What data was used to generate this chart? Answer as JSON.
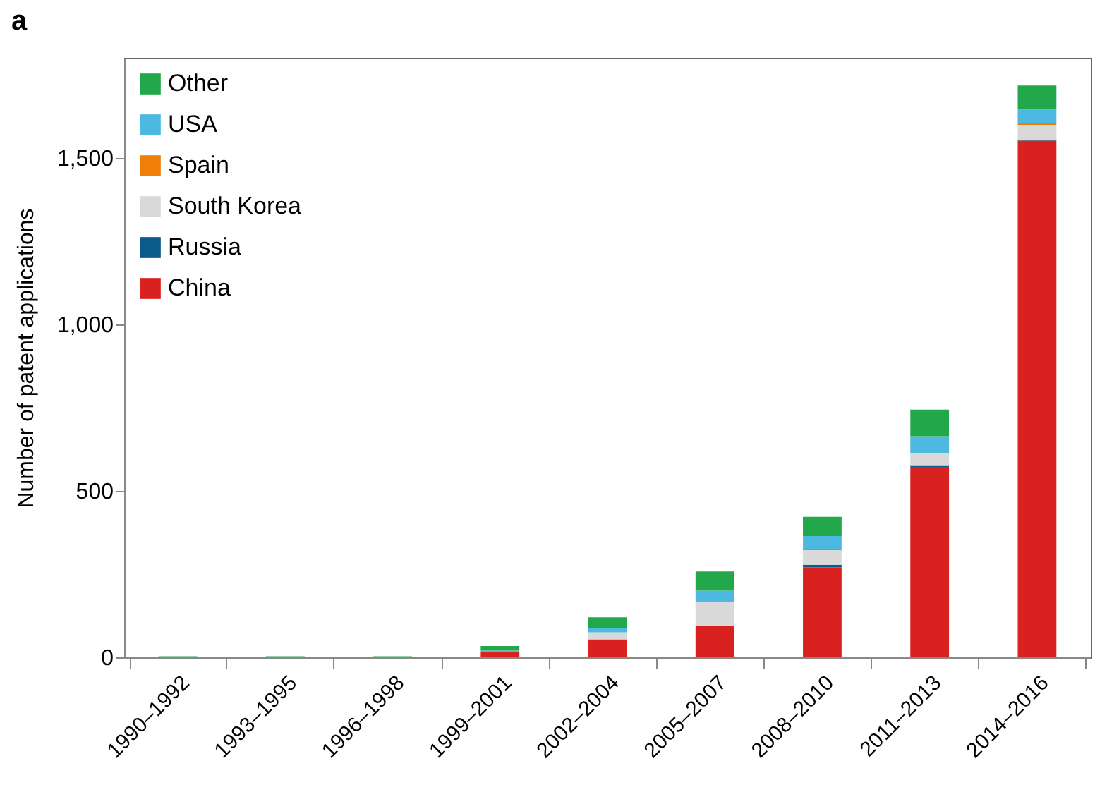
{
  "chart_data": {
    "type": "bar",
    "title": "a",
    "ylabel": "Number of patent applications",
    "categories": [
      "1990–1992",
      "1993–1995",
      "1996–1998",
      "1999–2001",
      "2002–2004",
      "2005–2007",
      "2008–2010",
      "2011–2013",
      "2014–2016"
    ],
    "stacked": true,
    "legend": "top left",
    "grid": false,
    "ylim": [
      0,
      1800
    ],
    "yticks": [
      0,
      500,
      {
        "value": 1000,
        "label": "1,000"
      },
      {
        "value": 1500,
        "label": "1,500"
      }
    ],
    "series": [
      {
        "name": "China",
        "color": "#d9221f",
        "values": [
          1,
          1,
          1,
          15,
          54,
          96,
          270,
          572,
          1551
        ]
      },
      {
        "name": "Russia",
        "color": "#0b5a8a",
        "values": [
          0,
          0,
          0,
          0,
          0,
          0,
          8,
          3,
          4
        ]
      },
      {
        "name": "South Korea",
        "color": "#d9d9d9",
        "values": [
          0,
          0,
          0,
          null,
          21,
          71,
          44,
          38,
          44
        ]
      },
      {
        "name": "Spain",
        "color": "#f07f0a",
        "values": [
          0,
          0,
          0,
          0,
          0,
          0,
          3,
          0,
          4
        ]
      },
      {
        "name": "USA",
        "color": "#4db8e0",
        "values": [
          0,
          0,
          0,
          5,
          14,
          33,
          39,
          51,
          42
        ]
      },
      {
        "name": "Other",
        "color": "#22a84a",
        "values": [
          2,
          2,
          2,
          14,
          31,
          58,
          58,
          80,
          72
        ]
      }
    ]
  }
}
